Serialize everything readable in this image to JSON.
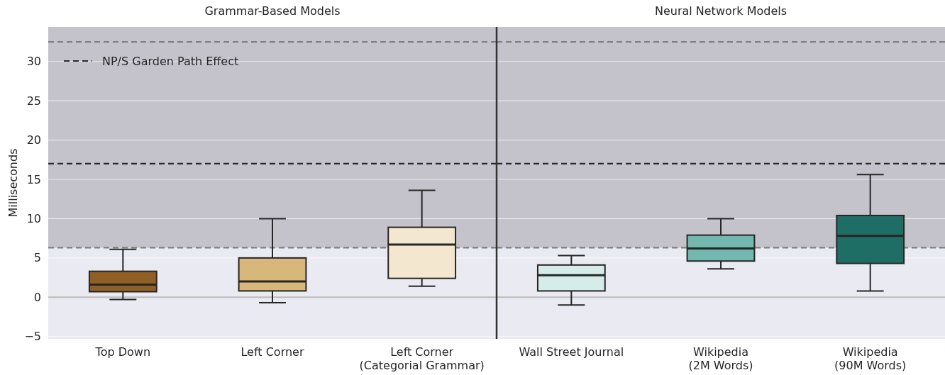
{
  "chart_data": [
    {
      "type": "box",
      "title": "Grammar-Based Models",
      "ylabel": "Milliseconds",
      "categories": [
        "Top Down",
        "Left Corner",
        "Left Corner\n(Categorial Grammar)"
      ],
      "colors": [
        "#8f5f25",
        "#d7b77a",
        "#f3e8cf"
      ],
      "boxes": [
        {
          "low": -0.3,
          "q1": 0.7,
          "median": 1.6,
          "q3": 3.3,
          "high": 6.1
        },
        {
          "low": -0.7,
          "q1": 0.8,
          "median": 2.0,
          "q3": 5.0,
          "high": 10.0
        },
        {
          "low": 1.4,
          "q1": 2.4,
          "median": 6.7,
          "q3": 8.9,
          "high": 13.6
        }
      ],
      "ylim": [
        -5.3,
        34.4
      ],
      "yticks": [
        {
          "value": -5,
          "label": "−5"
        },
        0,
        5,
        10,
        15,
        20,
        25,
        30
      ],
      "grid": "y",
      "legend": "top left",
      "bands": [
        {
          "axis": "y",
          "from": 6.3,
          "to": 34.4,
          "color": "#c4c3cb"
        }
      ],
      "ref_lines": [
        {
          "axis": "y",
          "value": 0,
          "color": "#bbbbbb",
          "line_style": "solid"
        },
        {
          "axis": "y",
          "value": 32.5,
          "color": "#808080",
          "line_style": "dashed"
        },
        {
          "axis": "y",
          "value": 17,
          "color": "#2a2a2a",
          "line_style": "dashed",
          "label": "NP/S Garden Path Effect"
        },
        {
          "axis": "y",
          "value": 6.3,
          "color": "#808080",
          "line_style": "dashed"
        }
      ]
    },
    {
      "type": "box",
      "title": "Neural Network Models",
      "categories": [
        "Wall Street Journal",
        "Wikipedia\n(2M Words)",
        "Wikipedia\n(90M Words)"
      ],
      "colors": [
        "#d6ece8",
        "#72b8ae",
        "#1f6e66"
      ],
      "boxes": [
        {
          "low": -1.0,
          "q1": 0.8,
          "median": 2.8,
          "q3": 4.1,
          "high": 5.3
        },
        {
          "low": 3.6,
          "q1": 4.6,
          "median": 6.2,
          "q3": 7.9,
          "high": 10.0
        },
        {
          "low": 0.8,
          "q1": 4.3,
          "median": 7.8,
          "q3": 10.4,
          "high": 15.6
        }
      ],
      "ylim": [
        -5.3,
        34.4
      ],
      "yticks": [
        -5,
        0,
        5,
        10,
        15,
        20,
        25,
        30
      ],
      "tick_labels": "x",
      "grid": "y",
      "bands": [
        {
          "axis": "y",
          "from": 6.3,
          "to": 34.4,
          "color": "#c4c3cb"
        }
      ],
      "ref_lines": [
        {
          "axis": "y",
          "value": 0,
          "color": "#bbbbbb",
          "line_style": "solid"
        },
        {
          "axis": "y",
          "value": 32.5,
          "color": "#808080",
          "line_style": "dashed"
        },
        {
          "axis": "y",
          "value": 17,
          "color": "#2a2a2a",
          "line_style": "dashed"
        },
        {
          "axis": "y",
          "value": 6.3,
          "color": "#808080",
          "line_style": "dashed"
        }
      ]
    }
  ]
}
